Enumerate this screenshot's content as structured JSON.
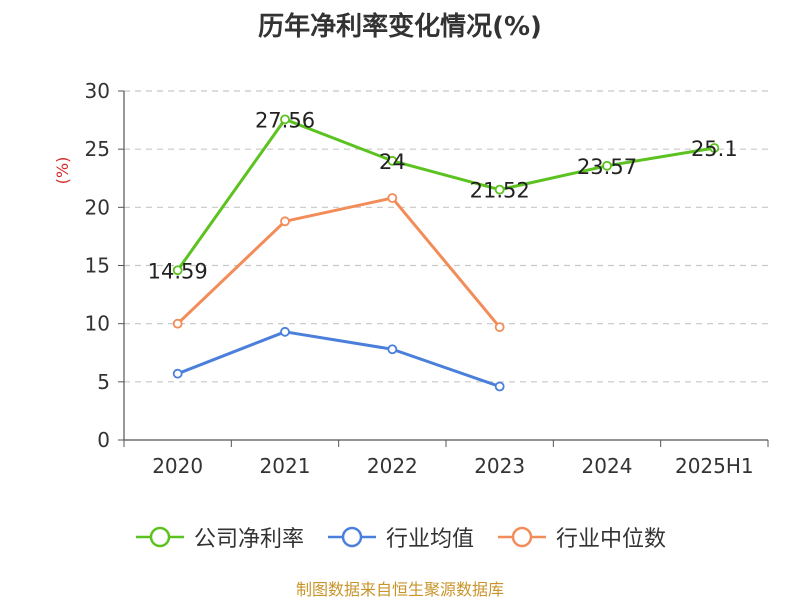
{
  "chart_data": {
    "type": "line",
    "title": "历年净利率变化情况(%)",
    "ylabel": "(%)",
    "xlabel": "",
    "categories": [
      "2020",
      "2021",
      "2022",
      "2023",
      "2024",
      "2025H1"
    ],
    "ylim": [
      0,
      30
    ],
    "yticks": [
      "0",
      "5",
      "10",
      "15",
      "20",
      "25",
      "30"
    ],
    "grid": "horizontal dashed",
    "legend_position": "bottom",
    "series": [
      {
        "name": "公司净利率",
        "color": "#5bc21f",
        "values": [
          14.59,
          27.56,
          24,
          21.52,
          23.57,
          25.1
        ],
        "labels": [
          "14.59",
          "27.56",
          "24",
          "21.52",
          "23.57",
          "25.1"
        ]
      },
      {
        "name": "行业均值",
        "color": "#4a7fdb",
        "values": [
          5.7,
          9.3,
          7.8,
          4.6,
          null,
          null
        ]
      },
      {
        "name": "行业中位数",
        "color": "#f28c58",
        "values": [
          10,
          18.8,
          20.8,
          9.7,
          null,
          null
        ]
      }
    ]
  },
  "source_note": "制图数据来自恒生聚源数据库"
}
